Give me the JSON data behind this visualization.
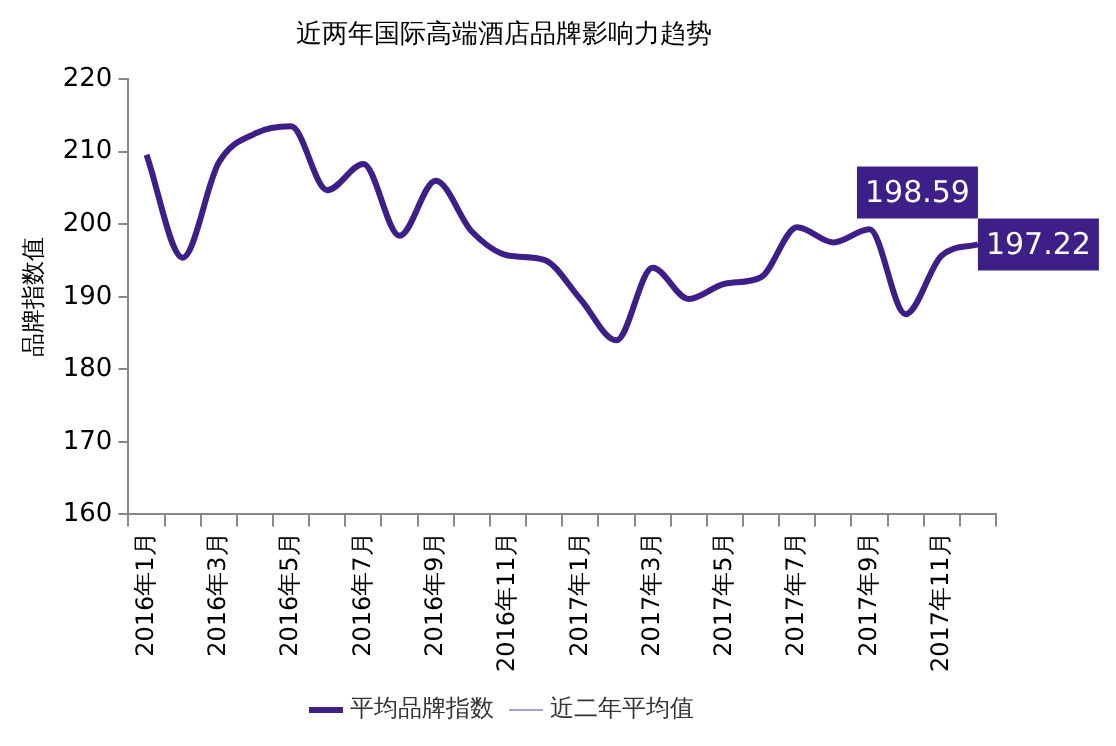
{
  "chart_data": {
    "type": "line",
    "title": "近两年国际高端酒店品牌影响力趋势",
    "ylabel": "品牌指数值",
    "categories": [
      "2016年1月",
      null,
      "2016年3月",
      null,
      "2016年5月",
      null,
      "2016年7月",
      null,
      "2016年9月",
      null,
      "2016年11月",
      null,
      "2017年1月",
      null,
      "2017年3月",
      null,
      "2017年5月",
      null,
      "2017年7月",
      null,
      "2017年9月",
      null,
      "2017年11月",
      null
    ],
    "series": [
      {
        "name": "平均品牌指数",
        "color": "#3d1f87",
        "values": [
          209.6,
          195.4,
          208.5,
          212.5,
          213.5,
          204.7,
          208.3,
          198.4,
          206,
          199,
          195.7,
          195.1,
          189.7,
          184,
          194,
          189.7,
          191.8,
          192.7,
          199.6,
          197.5,
          199.3,
          187.6,
          195.7,
          197.22
        ],
        "value_labels": [
          null,
          null,
          null,
          null,
          null,
          null,
          null,
          null,
          null,
          null,
          null,
          null,
          null,
          null,
          null,
          null,
          null,
          null,
          null,
          null,
          null,
          null,
          null,
          "197.22"
        ]
      },
      {
        "name": "近二年平均值",
        "color": "#a9a3d3",
        "line_style": "dashed",
        "values": [
          null,
          null,
          null,
          null,
          null,
          null,
          null,
          null,
          null,
          null,
          null,
          null,
          null,
          null,
          null,
          null,
          null,
          null,
          null,
          null,
          null,
          null,
          null,
          null
        ]
      }
    ],
    "annotations": [
      "198.59"
    ],
    "ylim": [
      160,
      220
    ],
    "yticks": [
      160,
      170,
      180,
      190,
      200,
      210,
      220
    ],
    "grid": false,
    "legend": "bottom",
    "marker": "none"
  }
}
